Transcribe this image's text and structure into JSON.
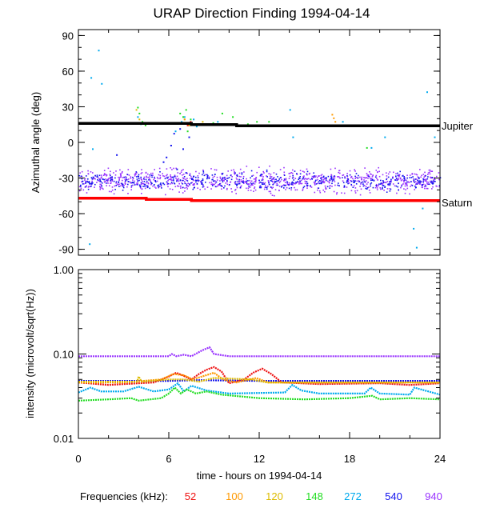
{
  "chart_data": [
    {
      "type": "scatter",
      "title": "URAP Direction Finding  1994-04-14",
      "ylabel": "Azimuthal angle (deg)",
      "xlim": [
        0,
        24
      ],
      "ylim": [
        -95,
        95
      ],
      "yticks": [
        90,
        60,
        30,
        0,
        -30,
        -60,
        -90
      ],
      "reference_lines": [
        {
          "name": "Jupiter",
          "color": "#000000",
          "points": [
            [
              0,
              16
            ],
            [
              7.5,
              16
            ],
            [
              7.5,
              15
            ],
            [
              10.5,
              15
            ],
            [
              10.5,
              14
            ],
            [
              24,
              14
            ]
          ]
        },
        {
          "name": "Saturn",
          "color": "#ff0000",
          "points": [
            [
              0,
              -47
            ],
            [
              4.5,
              -47
            ],
            [
              4.5,
              -48
            ],
            [
              7.5,
              -48
            ],
            [
              7.5,
              -49
            ],
            [
              24,
              -49
            ]
          ]
        }
      ],
      "series": [
        {
          "name": "940",
          "color": "#9933ff",
          "band": {
            "center": -32,
            "spread": 8
          },
          "density": 900
        },
        {
          "name": "540",
          "color": "#1414ee",
          "band": {
            "center": -32,
            "spread": 6
          },
          "density": 500,
          "extra_points": [
            [
              5.6,
              -16
            ],
            [
              5.8,
              -12
            ],
            [
              6.1,
              -2
            ],
            [
              6.3,
              8
            ],
            [
              6.5,
              -22
            ],
            [
              6.7,
              12
            ],
            [
              6.9,
              -5
            ],
            [
              7.1,
              -25
            ],
            [
              7.3,
              5
            ],
            [
              7.6,
              -28
            ],
            [
              2.5,
              -10
            ]
          ]
        },
        {
          "name": "272",
          "color": "#00aaee",
          "points": [
            [
              0.8,
              55
            ],
            [
              1.3,
              78
            ],
            [
              1.5,
              50
            ],
            [
              0.9,
              -5
            ],
            [
              0.7,
              -85
            ],
            [
              3.9,
              22
            ],
            [
              4.1,
              16
            ],
            [
              6.4,
              10
            ],
            [
              6.8,
              18
            ],
            [
              7.0,
              22
            ],
            [
              7.3,
              15
            ],
            [
              7.6,
              20
            ],
            [
              7.8,
              14
            ],
            [
              9.2,
              18
            ],
            [
              14.0,
              28
            ],
            [
              14.2,
              5
            ],
            [
              17.5,
              18
            ],
            [
              19.4,
              -4
            ],
            [
              20.3,
              5
            ],
            [
              22.2,
              -72
            ],
            [
              22.4,
              -88
            ],
            [
              22.8,
              -55
            ],
            [
              23.1,
              43
            ],
            [
              23.6,
              5
            ]
          ]
        },
        {
          "name": "148",
          "color": "#22dd22",
          "points": [
            [
              3.9,
              30
            ],
            [
              4.0,
              25
            ],
            [
              4.2,
              18
            ],
            [
              4.4,
              15
            ],
            [
              6.7,
              25
            ],
            [
              6.9,
              22
            ],
            [
              7.1,
              28
            ],
            [
              7.4,
              20
            ],
            [
              7.2,
              10
            ],
            [
              8.9,
              17
            ],
            [
              9.5,
              25
            ],
            [
              10.2,
              22
            ],
            [
              11.2,
              16
            ],
            [
              11.8,
              18
            ],
            [
              12.6,
              18
            ],
            [
              18.3,
              15
            ],
            [
              19.1,
              -4
            ],
            [
              21.0,
              15
            ]
          ]
        },
        {
          "name": "120",
          "color": "#ddbb00",
          "points": [
            [
              3.8,
              28
            ],
            [
              4.0,
              20
            ],
            [
              7.0,
              20
            ],
            [
              7.3,
              15
            ],
            [
              7.6,
              16
            ],
            [
              8.2,
              18
            ]
          ]
        },
        {
          "name": "100",
          "color": "#ff9900",
          "points": [
            [
              6.8,
              17
            ],
            [
              7.0,
              20
            ],
            [
              16.8,
              24
            ],
            [
              16.9,
              21
            ],
            [
              17.0,
              18
            ],
            [
              17.1,
              15
            ]
          ]
        },
        {
          "name": "52",
          "color": "#ee1111",
          "points": [
            [
              7.2,
              15
            ],
            [
              7.4,
              18
            ]
          ]
        }
      ],
      "labels": [
        "Jupiter",
        "Saturn"
      ]
    },
    {
      "type": "line",
      "ylabel": "intensity (microvolt/sqrt(Hz))",
      "xlabel": "time - hours on 1994-04-14",
      "xlim": [
        0,
        24
      ],
      "xticks": [
        0,
        6,
        12,
        18,
        24
      ],
      "yscale": "log",
      "ylim": [
        0.01,
        1.0
      ],
      "yticks": [
        "1.00",
        "0.10",
        "0.01"
      ],
      "series": [
        {
          "name": "940",
          "color": "#9933ff",
          "points": [
            [
              0,
              0.094
            ],
            [
              6,
              0.094
            ],
            [
              6.2,
              0.1
            ],
            [
              6.5,
              0.094
            ],
            [
              7,
              0.098
            ],
            [
              7.5,
              0.094
            ],
            [
              8.2,
              0.11
            ],
            [
              8.7,
              0.12
            ],
            [
              9,
              0.1
            ],
            [
              10,
              0.094
            ],
            [
              24,
              0.094
            ]
          ]
        },
        {
          "name": "540",
          "color": "#1414ee",
          "points": [
            [
              0,
              0.048
            ],
            [
              6,
              0.048
            ],
            [
              8,
              0.049
            ],
            [
              12,
              0.048
            ],
            [
              24,
              0.048
            ]
          ]
        },
        {
          "name": "52",
          "color": "#ee1111",
          "points": [
            [
              0,
              0.046
            ],
            [
              2,
              0.043
            ],
            [
              3,
              0.044
            ],
            [
              5,
              0.046
            ],
            [
              6,
              0.054
            ],
            [
              6.5,
              0.06
            ],
            [
              7,
              0.055
            ],
            [
              7.5,
              0.05
            ],
            [
              8,
              0.058
            ],
            [
              8.5,
              0.065
            ],
            [
              9,
              0.07
            ],
            [
              9.5,
              0.062
            ],
            [
              10,
              0.045
            ],
            [
              11,
              0.05
            ],
            [
              11.6,
              0.06
            ],
            [
              12.2,
              0.067
            ],
            [
              12.8,
              0.058
            ],
            [
              13.5,
              0.046
            ],
            [
              16,
              0.044
            ],
            [
              20,
              0.045
            ],
            [
              22,
              0.043
            ],
            [
              24,
              0.045
            ]
          ]
        },
        {
          "name": "100",
          "color": "#ff9900",
          "points": [
            [
              0,
              0.046
            ],
            [
              3,
              0.046
            ],
            [
              5.5,
              0.05
            ],
            [
              6.3,
              0.058
            ],
            [
              7,
              0.056
            ],
            [
              7.6,
              0.05
            ],
            [
              8.2,
              0.054
            ],
            [
              9,
              0.06
            ],
            [
              9.6,
              0.05
            ],
            [
              10.5,
              0.046
            ],
            [
              11.8,
              0.052
            ],
            [
              12.6,
              0.046
            ],
            [
              24,
              0.046
            ]
          ]
        },
        {
          "name": "120",
          "color": "#ddbb00",
          "points": [
            [
              0,
              0.047
            ],
            [
              3.9,
              0.047
            ],
            [
              4.0,
              0.054
            ],
            [
              4.2,
              0.047
            ],
            [
              6,
              0.05
            ],
            [
              7,
              0.05
            ],
            [
              8,
              0.047
            ],
            [
              9,
              0.052
            ],
            [
              11.5,
              0.05
            ],
            [
              12.5,
              0.046
            ],
            [
              24,
              0.046
            ]
          ]
        },
        {
          "name": "272",
          "color": "#00aaee",
          "points": [
            [
              0,
              0.035
            ],
            [
              0.8,
              0.04
            ],
            [
              1.5,
              0.036
            ],
            [
              3,
              0.036
            ],
            [
              4,
              0.041
            ],
            [
              5,
              0.036
            ],
            [
              6,
              0.038
            ],
            [
              6.6,
              0.045
            ],
            [
              7,
              0.036
            ],
            [
              7.5,
              0.042
            ],
            [
              8.5,
              0.037
            ],
            [
              10,
              0.034
            ],
            [
              13.7,
              0.035
            ],
            [
              14.2,
              0.043
            ],
            [
              14.8,
              0.037
            ],
            [
              16,
              0.034
            ],
            [
              19,
              0.034
            ],
            [
              19.4,
              0.04
            ],
            [
              20,
              0.034
            ],
            [
              22,
              0.033
            ],
            [
              22.3,
              0.04
            ],
            [
              24,
              0.033
            ]
          ]
        },
        {
          "name": "148",
          "color": "#22dd22",
          "points": [
            [
              0,
              0.028
            ],
            [
              2,
              0.029
            ],
            [
              3.5,
              0.03
            ],
            [
              4,
              0.028
            ],
            [
              5.5,
              0.03
            ],
            [
              6,
              0.034
            ],
            [
              6.4,
              0.04
            ],
            [
              6.8,
              0.034
            ],
            [
              7.2,
              0.038
            ],
            [
              7.8,
              0.034
            ],
            [
              8.5,
              0.036
            ],
            [
              9.5,
              0.033
            ],
            [
              12,
              0.03
            ],
            [
              15,
              0.029
            ],
            [
              18,
              0.03
            ],
            [
              19.5,
              0.032
            ],
            [
              20,
              0.029
            ],
            [
              22,
              0.03
            ],
            [
              24,
              0.029
            ]
          ]
        }
      ]
    }
  ],
  "legend": {
    "label": "Frequencies (kHz):",
    "items": [
      {
        "name": "52",
        "color": "#ee1111"
      },
      {
        "name": "100",
        "color": "#ff9900"
      },
      {
        "name": "120",
        "color": "#ddbb00"
      },
      {
        "name": "148",
        "color": "#22dd22"
      },
      {
        "name": "272",
        "color": "#00aaee"
      },
      {
        "name": "540",
        "color": "#1414ee"
      },
      {
        "name": "940",
        "color": "#9933ff"
      }
    ]
  }
}
